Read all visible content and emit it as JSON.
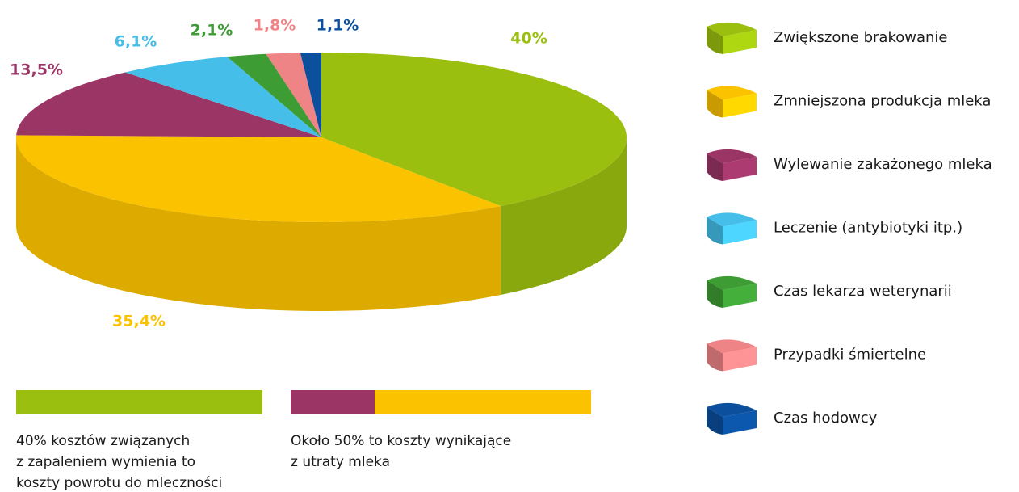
{
  "chart_data": {
    "type": "pie",
    "categories": [
      "Zwiększone brakowanie",
      "Zmniejszona produkcja mleka",
      "Wylewanie zakażonego mleka",
      "Leczenie (antybiotyki itp.)",
      "Czas lekarza weterynarii",
      "Przypadki śmiertelne",
      "Czas hodowcy"
    ],
    "values": [
      40,
      35.4,
      13.5,
      6.1,
      2.1,
      1.8,
      1.1
    ],
    "value_labels": [
      "40%",
      "35,4%",
      "13,5%",
      "6,1%",
      "2,1%",
      "1,8%",
      "1,1%"
    ],
    "colors": [
      "#9bbf0f",
      "#fbc200",
      "#9a3566",
      "#45bfe9",
      "#3e9c35",
      "#ef8487",
      "#0c4f9c"
    ],
    "legend": "right",
    "annotations": [
      [
        "40% kosztów związanych",
        "z zapaleniem wymienia to",
        "koszty powrotu do mleczności"
      ],
      [
        "Około 50% to koszty wynikające",
        "z utraty mleka"
      ]
    ]
  }
}
